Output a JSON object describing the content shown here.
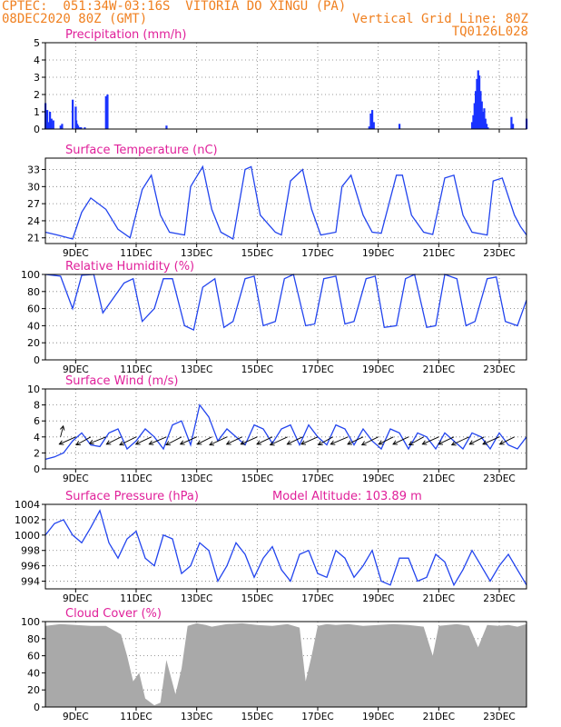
{
  "header": {
    "line1_left": "CPTEC:  051:34W-03:16S  VITORIA DO XINGU (PA)",
    "line2_left": "08DEC2020 80Z (GMT)",
    "line2_right": "Vertical Grid Line: 80Z",
    "line3_right": "TQ0126L028"
  },
  "colors": {
    "header": "#f08020",
    "title": "#e0209a",
    "line": "#2244ee",
    "bar": "#1a33ff",
    "cloud": "#a9a9a9",
    "wind_vector": "#000000"
  },
  "chart_data": [
    {
      "type": "bar",
      "title": "Precipitation (mm/h)",
      "x_tick_labels": [],
      "ylim": [
        0,
        5
      ],
      "yticks": [
        0,
        1,
        2,
        3,
        4,
        5
      ],
      "grid": true,
      "series": [
        {
          "x": [
            0.0,
            0.06,
            0.1,
            0.15,
            0.2,
            0.26,
            0.5,
            0.55,
            0.9,
            1.0,
            1.02,
            1.05,
            1.08,
            1.12,
            1.15,
            1.18,
            1.3,
            2.0,
            2.05,
            4.0,
            10.7,
            10.75,
            10.8,
            10.85,
            11.7,
            14.1,
            14.14,
            14.18,
            14.22,
            14.26,
            14.3,
            14.34,
            14.38,
            14.42,
            14.46,
            14.5,
            14.54,
            14.58,
            14.62,
            15.4,
            15.45,
            15.9
          ],
          "values": [
            1.5,
            1.1,
            0.4,
            1.0,
            0.6,
            0.5,
            0.2,
            0.3,
            1.7,
            1.3,
            0.5,
            0.3,
            0.2,
            0.1,
            0.1,
            0.1,
            0.1,
            1.9,
            2.0,
            0.2,
            0.15,
            0.9,
            1.1,
            0.4,
            0.3,
            0.4,
            0.8,
            1.5,
            2.2,
            2.9,
            3.4,
            3.1,
            2.2,
            1.6,
            1.0,
            1.2,
            0.6,
            0.3,
            0.1,
            0.7,
            0.3,
            0.6
          ]
        }
      ]
    },
    {
      "type": "line",
      "title": "Surface Temperature (nC)",
      "x_tick_labels": [
        "9DEC",
        "11DEC",
        "13DEC",
        "15DEC",
        "17DEC",
        "19DEC",
        "21DEC",
        "23DEC"
      ],
      "ylim": [
        20,
        35
      ],
      "yticks": [
        21,
        24,
        27,
        30,
        33
      ],
      "grid": true,
      "series": [
        {
          "x": [
            0,
            0.4,
            0.9,
            1.2,
            1.5,
            2.0,
            2.4,
            2.8,
            3.2,
            3.5,
            3.8,
            4.1,
            4.6,
            4.8,
            5.2,
            5.5,
            5.8,
            6.2,
            6.6,
            6.8,
            7.1,
            7.6,
            7.8,
            8.1,
            8.5,
            8.8,
            9.1,
            9.6,
            9.8,
            10.1,
            10.5,
            10.8,
            11.1,
            11.6,
            11.8,
            12.1,
            12.5,
            12.8,
            13.2,
            13.5,
            13.8,
            14.1,
            14.6,
            14.8,
            15.1,
            15.5,
            15.7,
            15.9
          ],
          "values": [
            22,
            21.5,
            20.8,
            25.5,
            28,
            26,
            22.5,
            21,
            29.5,
            32,
            25,
            22,
            21.5,
            30,
            33.5,
            26,
            22,
            20.8,
            33,
            33.5,
            25,
            22,
            21.5,
            31,
            33,
            26,
            21.5,
            22,
            30,
            32,
            25,
            22,
            21.8,
            32,
            32,
            25,
            22,
            21.6,
            31.5,
            32,
            25,
            22,
            21.5,
            31,
            31.5,
            25,
            23,
            21.5
          ]
        }
      ]
    },
    {
      "type": "line",
      "title": "Relative Humidity (%)",
      "x_tick_labels": [
        "9DEC",
        "11DEC",
        "13DEC",
        "15DEC",
        "17DEC",
        "19DEC",
        "21DEC",
        "23DEC"
      ],
      "ylim": [
        0,
        100
      ],
      "yticks": [
        0,
        20,
        40,
        60,
        80,
        100
      ],
      "grid": true,
      "series": [
        {
          "x": [
            0,
            0.5,
            0.9,
            1.2,
            1.6,
            1.9,
            2.2,
            2.6,
            2.9,
            3.2,
            3.6,
            3.9,
            4.2,
            4.6,
            4.9,
            5.2,
            5.6,
            5.9,
            6.2,
            6.6,
            6.9,
            7.2,
            7.6,
            7.9,
            8.2,
            8.6,
            8.9,
            9.2,
            9.6,
            9.9,
            10.2,
            10.6,
            10.9,
            11.2,
            11.6,
            11.9,
            12.2,
            12.6,
            12.9,
            13.2,
            13.6,
            13.9,
            14.2,
            14.6,
            14.9,
            15.2,
            15.6,
            15.9
          ],
          "values": [
            100,
            98,
            60,
            99,
            100,
            55,
            70,
            90,
            95,
            45,
            60,
            95,
            95,
            40,
            35,
            85,
            95,
            38,
            45,
            95,
            98,
            40,
            45,
            95,
            100,
            40,
            42,
            95,
            98,
            42,
            45,
            95,
            98,
            38,
            40,
            95,
            100,
            38,
            40,
            100,
            95,
            40,
            45,
            95,
            97,
            45,
            40,
            70
          ]
        }
      ]
    },
    {
      "type": "line",
      "title": "Surface Wind (m/s)",
      "x_tick_labels": [
        "9DEC",
        "11DEC",
        "13DEC",
        "15DEC",
        "17DEC",
        "19DEC",
        "21DEC",
        "23DEC"
      ],
      "ylim": [
        0,
        10
      ],
      "yticks": [
        0,
        2,
        4,
        6,
        8,
        10
      ],
      "grid": true,
      "series": [
        {
          "x": [
            0,
            0.3,
            0.6,
            0.9,
            1.2,
            1.5,
            1.8,
            2.1,
            2.4,
            2.7,
            3.0,
            3.3,
            3.6,
            3.9,
            4.2,
            4.5,
            4.8,
            5.1,
            5.4,
            5.7,
            6.0,
            6.3,
            6.6,
            6.9,
            7.2,
            7.5,
            7.8,
            8.1,
            8.4,
            8.7,
            9.0,
            9.3,
            9.6,
            9.9,
            10.2,
            10.5,
            10.8,
            11.1,
            11.4,
            11.7,
            12.0,
            12.3,
            12.6,
            12.9,
            13.2,
            13.5,
            13.8,
            14.1,
            14.4,
            14.7,
            15.0,
            15.3,
            15.6,
            15.9
          ],
          "values": [
            1.2,
            1.5,
            2.0,
            3.5,
            4.5,
            3.0,
            2.8,
            4.5,
            5.0,
            2.5,
            3.5,
            5.0,
            4.0,
            2.5,
            5.5,
            6.0,
            3.0,
            8.0,
            6.5,
            3.5,
            5.0,
            4.0,
            3.0,
            5.5,
            5.0,
            3.2,
            5.0,
            5.5,
            3.0,
            5.5,
            4.0,
            3.0,
            5.5,
            5.0,
            3.0,
            5.0,
            3.5,
            2.5,
            5.0,
            4.5,
            2.5,
            4.5,
            4.0,
            2.5,
            4.5,
            3.5,
            2.5,
            4.5,
            4.0,
            2.5,
            4.5,
            3.0,
            2.5,
            4.0
          ]
        }
      ],
      "wind_vectors": {
        "x": [
          0.5,
          1.0,
          1.5,
          2.0,
          2.5,
          3.0,
          3.5,
          4.0,
          4.5,
          5.0,
          5.5,
          6.0,
          6.5,
          7.0,
          7.5,
          8.0,
          8.5,
          9.0,
          9.5,
          10.0,
          10.5,
          11.0,
          11.5,
          12.0,
          12.5,
          13.0,
          13.5,
          14.0,
          14.5,
          15.0,
          15.5
        ],
        "u": [
          0.3,
          -1.8,
          -1.6,
          -1.8,
          -1.6,
          -1.8,
          -1.7,
          -1.9,
          -1.7,
          -1.8,
          -1.6,
          -1.9,
          -1.7,
          -1.8,
          -1.7,
          -1.9,
          -1.7,
          -1.8,
          -1.6,
          -1.9,
          -1.7,
          -1.8,
          -1.6,
          -1.7,
          -1.6,
          -1.8,
          -1.7,
          -1.9,
          -1.6,
          -1.8,
          -1.6
        ],
        "v": [
          1.5,
          -1.0,
          -1.1,
          -0.9,
          -1.0,
          -1.1,
          -1.0,
          -1.0,
          -1.1,
          -1.0,
          -1.0,
          -1.1,
          -1.0,
          -1.0,
          -1.0,
          -1.1,
          -1.0,
          -1.0,
          -1.1,
          -1.0,
          -1.0,
          -1.1,
          -1.0,
          -1.0,
          -1.1,
          -1.0,
          -1.0,
          -1.1,
          -1.0,
          -1.0,
          -1.0
        ]
      }
    },
    {
      "type": "line",
      "title": "Surface Pressure (hPa)",
      "annotation": "Model Altitude: 103.89 m",
      "x_tick_labels": [
        "9DEC",
        "11DEC",
        "13DEC",
        "15DEC",
        "17DEC",
        "19DEC",
        "21DEC",
        "23DEC"
      ],
      "ylim": [
        993,
        1004
      ],
      "yticks": [
        994,
        996,
        998,
        1000,
        1002,
        1004
      ],
      "grid": true,
      "series": [
        {
          "x": [
            0,
            0.3,
            0.6,
            0.9,
            1.2,
            1.5,
            1.8,
            2.1,
            2.4,
            2.7,
            3.0,
            3.3,
            3.6,
            3.9,
            4.2,
            4.5,
            4.8,
            5.1,
            5.4,
            5.7,
            6.0,
            6.3,
            6.6,
            6.9,
            7.2,
            7.5,
            7.8,
            8.1,
            8.4,
            8.7,
            9.0,
            9.3,
            9.6,
            9.9,
            10.2,
            10.5,
            10.8,
            11.1,
            11.4,
            11.7,
            12.0,
            12.3,
            12.6,
            12.9,
            13.2,
            13.5,
            13.8,
            14.1,
            14.4,
            14.7,
            15.0,
            15.3,
            15.6,
            15.9
          ],
          "values": [
            1000,
            1001.5,
            1002,
            1000,
            999,
            1001,
            1003.2,
            999,
            997,
            999.5,
            1000.5,
            997,
            996,
            1000,
            999.5,
            995,
            996,
            999,
            998,
            994,
            996,
            999,
            997.5,
            994.5,
            997,
            998.5,
            995.5,
            994,
            997.5,
            998,
            995,
            994.5,
            998,
            997,
            994.5,
            996,
            998,
            994,
            993.5,
            997,
            997,
            994,
            994.5,
            997.5,
            996.5,
            993.5,
            995.5,
            998,
            996,
            994,
            996,
            997.5,
            995.5,
            993.5
          ]
        }
      ]
    },
    {
      "type": "area",
      "title": "Cloud Cover (%)",
      "x_tick_labels": [
        "9DEC",
        "11DEC",
        "13DEC",
        "15DEC",
        "17DEC",
        "19DEC",
        "21DEC",
        "23DEC"
      ],
      "ylim": [
        0,
        100
      ],
      "yticks": [
        0,
        20,
        40,
        60,
        80,
        100
      ],
      "grid": true,
      "series": [
        {
          "x": [
            0,
            0.5,
            1.0,
            1.5,
            2.0,
            2.5,
            2.7,
            2.9,
            3.1,
            3.3,
            3.6,
            3.8,
            4.0,
            4.3,
            4.5,
            4.7,
            5.0,
            5.3,
            5.5,
            6.0,
            6.5,
            7.0,
            7.5,
            8.0,
            8.4,
            8.6,
            8.8,
            9.0,
            9.3,
            9.6,
            10.0,
            10.5,
            11.0,
            11.5,
            12.0,
            12.5,
            12.8,
            13.0,
            13.3,
            13.6,
            14.0,
            14.3,
            14.6,
            15.0,
            15.3,
            15.6,
            15.9
          ],
          "values": [
            95,
            97,
            96,
            95,
            95,
            85,
            60,
            30,
            40,
            10,
            2,
            5,
            55,
            15,
            45,
            95,
            98,
            96,
            94,
            97,
            98,
            96,
            95,
            97,
            93,
            30,
            60,
            95,
            97,
            96,
            97,
            95,
            96,
            97,
            96,
            94,
            60,
            95,
            96,
            97,
            95,
            70,
            96,
            95,
            96,
            94,
            97
          ]
        }
      ]
    }
  ]
}
